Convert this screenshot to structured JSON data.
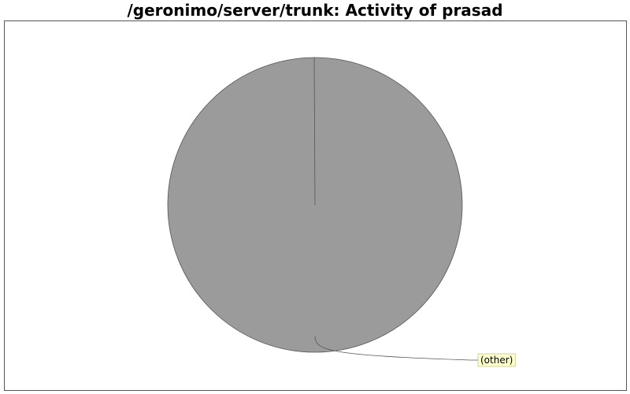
{
  "chart_data": {
    "type": "pie",
    "title": "/geronimo/server/trunk: Activity of prasad",
    "slices": [
      {
        "label": "(other)",
        "value": 1,
        "color": "#9b9b9b"
      }
    ],
    "label_background": "#ffffcc",
    "legend": "none"
  }
}
